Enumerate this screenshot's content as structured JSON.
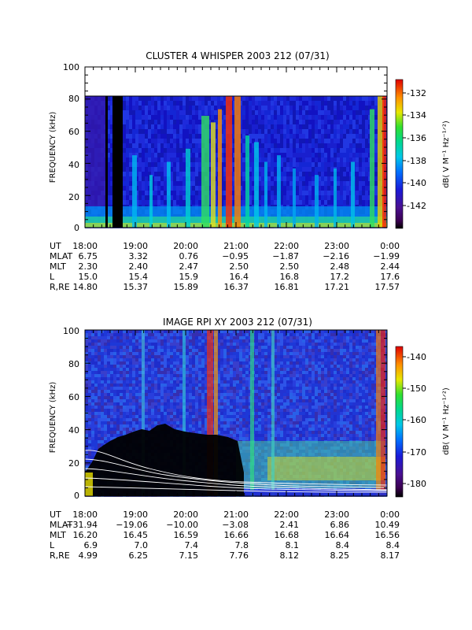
{
  "chart_data": [
    {
      "type": "heatmap",
      "title": "CLUSTER 4 WHISPER 2003 212 (07/31)",
      "ylabel": "FREQUENCY (kHz)",
      "ylim": [
        0,
        100
      ],
      "yticks": [
        "0",
        "20",
        "40",
        "60",
        "80",
        "100"
      ],
      "xlim": [
        "18:00",
        "0:00"
      ],
      "data_max_frequency": 80,
      "colorbar": {
        "label": "dB( V M⁻¹ Hz⁻¹ᐟ²)",
        "range": [
          -143.5,
          -131
        ],
        "ticks": [
          "-132",
          "-134",
          "-136",
          "-138",
          "-140",
          "-142"
        ]
      },
      "ephemeris": {
        "labels": [
          "UT",
          "MLAT",
          "MLT",
          "L",
          "R,RE"
        ],
        "columns": [
          {
            "UT": "18:00",
            "MLAT": "6.75",
            "MLT": "2.30",
            "L": "15.0",
            "R,RE": "14.80"
          },
          {
            "UT": "19:00",
            "MLAT": "3.32",
            "MLT": "2.40",
            "L": "15.4",
            "R,RE": "15.37"
          },
          {
            "UT": "20:00",
            "MLAT": "0.76",
            "MLT": "2.47",
            "L": "15.9",
            "R,RE": "15.89"
          },
          {
            "UT": "21:00",
            "MLAT": "−0.95",
            "MLT": "2.50",
            "L": "16.4",
            "R,RE": "16.37"
          },
          {
            "UT": "22:00",
            "MLAT": "−1.87",
            "MLT": "2.50",
            "L": "16.8",
            "R,RE": "16.81"
          },
          {
            "UT": "23:00",
            "MLAT": "−2.16",
            "MLT": "2.48",
            "L": "17.2",
            "R,RE": "17.21"
          },
          {
            "UT": "0:00",
            "MLAT": "−1.99",
            "MLT": "2.44",
            "L": "17.6",
            "R,RE": "17.57"
          }
        ]
      }
    },
    {
      "type": "heatmap",
      "title": "IMAGE RPI XY 2003 212 (07/31)",
      "ylabel": "FREQUENCY (kHz)",
      "ylim": [
        0,
        100
      ],
      "yticks": [
        "0",
        "20",
        "40",
        "60",
        "80",
        "100"
      ],
      "xlim": [
        "18:00",
        "0:00"
      ],
      "colorbar": {
        "label": "dB( V M⁻¹ Hz⁻¹ᐟ²)",
        "range": [
          -185,
          -135
        ],
        "ticks": [
          "-140",
          "-150",
          "-160",
          "-170",
          "-180"
        ]
      },
      "ephemeris": {
        "labels": [
          "UT",
          "MLAT",
          "MLT",
          "L",
          "R,RE"
        ],
        "columns": [
          {
            "UT": "18:00",
            "MLAT": "−31.94",
            "MLT": "16.20",
            "L": "6.9",
            "R,RE": "4.99"
          },
          {
            "UT": "19:00",
            "MLAT": "−19.06",
            "MLT": "16.45",
            "L": "7.0",
            "R,RE": "6.25"
          },
          {
            "UT": "20:00",
            "MLAT": "−10.00",
            "MLT": "16.59",
            "L": "7.4",
            "R,RE": "7.15"
          },
          {
            "UT": "21:00",
            "MLAT": "−3.08",
            "MLT": "16.66",
            "L": "7.8",
            "R,RE": "7.76"
          },
          {
            "UT": "22:00",
            "MLAT": "2.41",
            "MLT": "16.68",
            "L": "8.1",
            "R,RE": "8.12"
          },
          {
            "UT": "23:00",
            "MLAT": "6.86",
            "MLT": "16.64",
            "L": "8.4",
            "R,RE": "8.25"
          },
          {
            "UT": "0:00",
            "MLAT": "10.49",
            "MLT": "16.56",
            "L": "8.4",
            "R,RE": "8.17"
          }
        ]
      }
    }
  ]
}
